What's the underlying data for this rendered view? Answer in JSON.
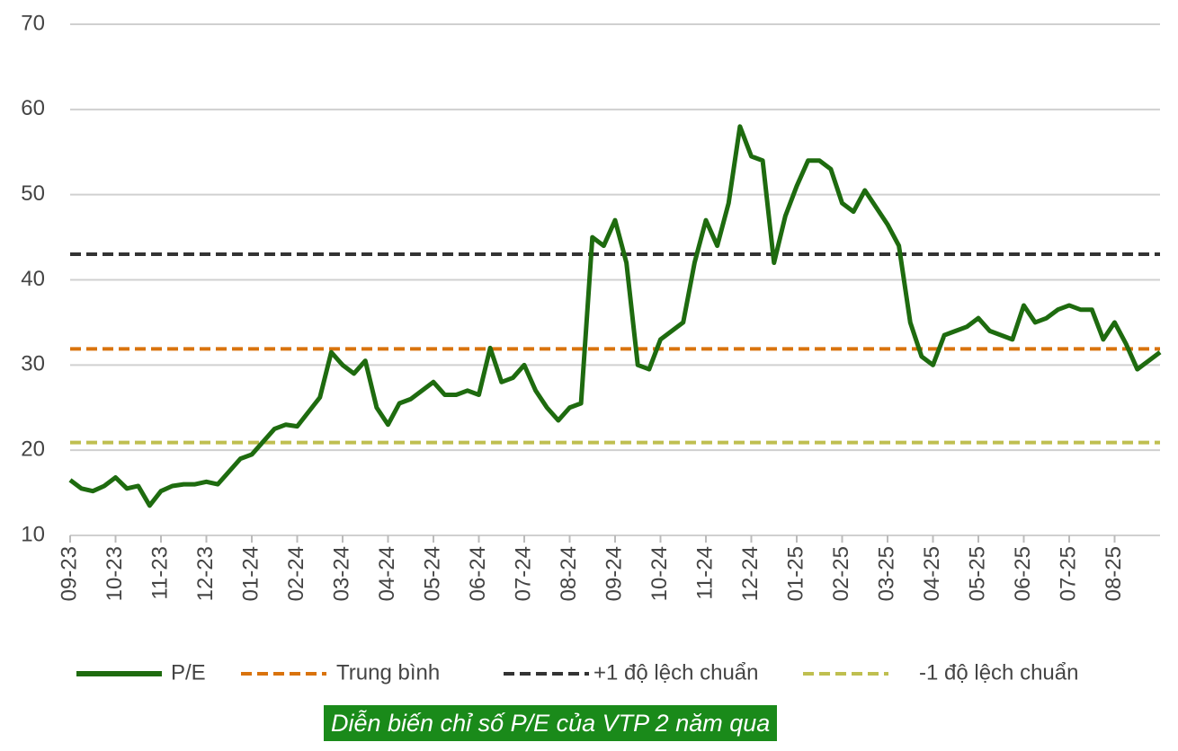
{
  "chart_data": {
    "type": "line",
    "categories": [
      "09-23",
      null,
      null,
      null,
      "10-23",
      null,
      null,
      null,
      "11-23",
      null,
      null,
      null,
      "12-23",
      null,
      null,
      null,
      "01-24",
      null,
      null,
      null,
      "02-24",
      null,
      null,
      null,
      "03-24",
      null,
      null,
      null,
      "04-24",
      null,
      null,
      null,
      "05-24",
      null,
      null,
      null,
      "06-24",
      null,
      null,
      null,
      "07-24",
      null,
      null,
      null,
      "08-24",
      null,
      null,
      null,
      "09-24",
      null,
      null,
      null,
      "10-24",
      null,
      null,
      null,
      "11-24",
      null,
      null,
      null,
      "12-24",
      null,
      null,
      null,
      "01-25",
      null,
      null,
      null,
      "02-25",
      null,
      null,
      null,
      "03-25",
      null,
      null,
      null,
      "04-25",
      null,
      null,
      null,
      "05-25",
      null,
      null,
      null,
      "06-25",
      null,
      null,
      null,
      "07-25",
      null,
      null,
      null,
      "08-25",
      null,
      null,
      null,
      null
    ],
    "series": [
      {
        "name": "P/E",
        "color": "#1e6b0f",
        "values": [
          16.5,
          15.5,
          15.2,
          15.8,
          16.8,
          15.5,
          15.8,
          13.5,
          15.2,
          15.8,
          16,
          16,
          16.3,
          16,
          17.5,
          19,
          19.5,
          21,
          22.5,
          23,
          22.8,
          24.5,
          26.2,
          31.5,
          30,
          29,
          30.5,
          25,
          23,
          25.5,
          26,
          27,
          28,
          26.5,
          26.5,
          27,
          26.5,
          32,
          28,
          28.5,
          30,
          27,
          25,
          23.5,
          25,
          25.5,
          45,
          44,
          47,
          42,
          30,
          29.5,
          33,
          34,
          35,
          42,
          47,
          44,
          49,
          58,
          54.5,
          54,
          42,
          47.5,
          51,
          54,
          54,
          53,
          49,
          48,
          50.5,
          48.5,
          46.5,
          44,
          35,
          31,
          30,
          33.5,
          34,
          34.5,
          35.5,
          34,
          33.5,
          33,
          37,
          35,
          35.5,
          36.5,
          37,
          36.5,
          36.5,
          33,
          35,
          32.5,
          29.5,
          30.5,
          31.5
        ]
      }
    ],
    "reference_lines": [
      {
        "name": "Trung bình",
        "value": 31.9,
        "color": "#d9730d"
      },
      {
        "name": "+1 độ lệch chuẩn",
        "value": 43,
        "color": "#333333"
      },
      {
        "name": "-1 độ lệch chuẩn",
        "value": 20.9,
        "color": "#bfbf50"
      }
    ],
    "ylim": [
      10,
      70
    ],
    "yticks": [
      10,
      20,
      30,
      40,
      50,
      60,
      70
    ],
    "grid": true,
    "caption": "Diễn biến chỉ số P/E của VTP 2 năm qua"
  }
}
